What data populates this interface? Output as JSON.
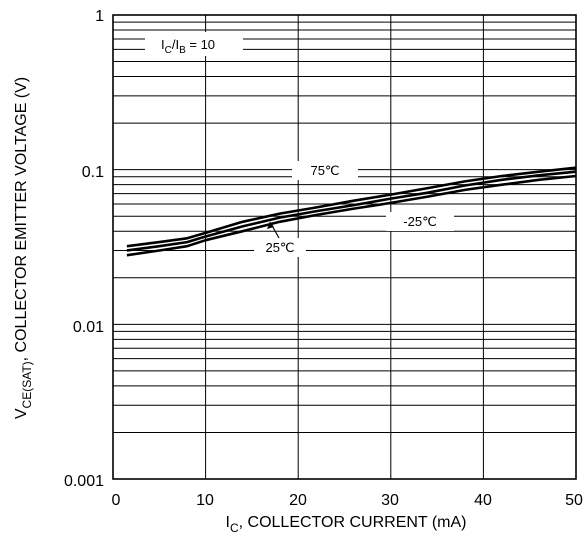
{
  "chart_data": {
    "type": "line",
    "title": "",
    "xlabel_main": "I",
    "xlabel_sub": "C",
    "xlabel_rest": ", COLLECTOR CURRENT (mA)",
    "ylabel_main": "V",
    "ylabel_sub": "CE(SAT)",
    "ylabel_rest": ", COLLECTOR EMITTER VOLTAGE (V)",
    "xlim": [
      0,
      50
    ],
    "ylim": [
      0.001,
      1
    ],
    "yscale": "log",
    "grid": true,
    "x_ticks": [
      "0",
      "10",
      "20",
      "30",
      "40",
      "50"
    ],
    "y_ticks": [
      "0.001",
      "0.01",
      "0.1",
      "1"
    ],
    "condition_main": "I",
    "condition_sub1": "C",
    "condition_slash": "/I",
    "condition_sub2": "B",
    "condition_rest": " = 10",
    "series": [
      {
        "name": "75℃",
        "x": [
          1.5,
          5,
          8,
          10,
          14,
          18,
          22,
          26,
          30,
          34,
          38,
          42,
          46,
          50
        ],
        "y": [
          0.032,
          0.034,
          0.036,
          0.039,
          0.046,
          0.052,
          0.057,
          0.063,
          0.069,
          0.076,
          0.084,
          0.091,
          0.097,
          0.103
        ]
      },
      {
        "name": "25℃",
        "x": [
          1.5,
          5,
          8,
          10,
          14,
          18,
          22,
          26,
          30,
          34,
          38,
          42,
          46,
          50
        ],
        "y": [
          0.03,
          0.032,
          0.034,
          0.037,
          0.043,
          0.049,
          0.054,
          0.059,
          0.065,
          0.071,
          0.079,
          0.086,
          0.092,
          0.097
        ]
      },
      {
        "name": "-25℃",
        "x": [
          1.5,
          5,
          8,
          10,
          14,
          18,
          22,
          26,
          30,
          34,
          38,
          42,
          46,
          50
        ],
        "y": [
          0.028,
          0.03,
          0.032,
          0.035,
          0.04,
          0.046,
          0.051,
          0.056,
          0.061,
          0.067,
          0.074,
          0.08,
          0.086,
          0.091
        ]
      }
    ]
  }
}
